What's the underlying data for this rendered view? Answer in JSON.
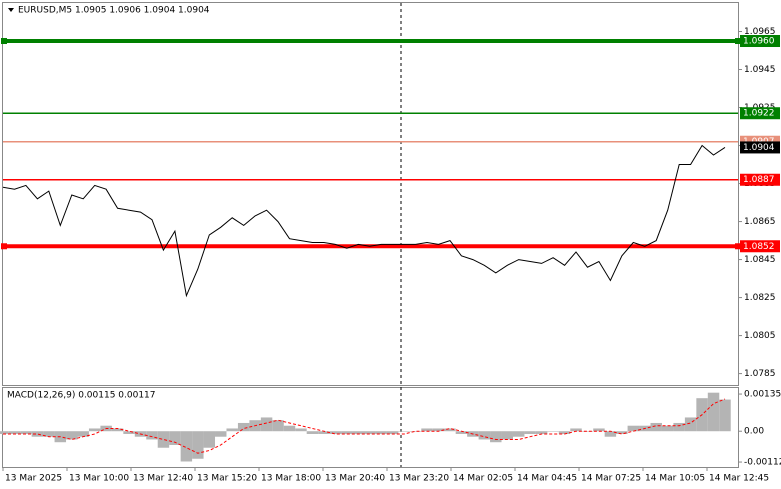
{
  "chart_data": [
    {
      "type": "line",
      "title": "EURUSD,M5  1.0905 1.0906 1.0904 1.0904",
      "series": [
        {
          "color": "#000000",
          "values": [
            1.0883,
            1.0882,
            1.0884,
            1.0877,
            1.0881,
            1.0863,
            1.0879,
            1.0877,
            1.0884,
            1.0882,
            1.0872,
            1.0871,
            1.087,
            1.0866,
            1.085,
            1.086,
            1.0826,
            1.084,
            1.0858,
            1.0862,
            1.0867,
            1.0863,
            1.0868,
            1.0871,
            1.0865,
            1.0856,
            1.0855,
            1.0854,
            1.0854,
            1.0853,
            1.0851,
            1.0853,
            1.0852,
            1.0853,
            1.0853,
            1.0853,
            1.0853,
            1.0854,
            1.0853,
            1.0855,
            1.0847,
            1.0845,
            1.0842,
            1.0838,
            1.0842,
            1.0845,
            1.0844,
            1.0843,
            1.0846,
            1.0842,
            1.0849,
            1.0841,
            1.0844,
            1.0834,
            1.0847,
            1.0854,
            1.0852,
            1.0855,
            1.0871,
            1.0895,
            1.0895,
            1.0905,
            1.09,
            1.0904
          ]
        }
      ],
      "ylim": [
        1.0779,
        1.098
      ],
      "yticks": [
        1.0965,
        1.0945,
        1.0925,
        1.0905,
        1.0885,
        1.0865,
        1.0845,
        1.0825,
        1.0805,
        1.0785
      ],
      "levels": [
        {
          "value": 1.096,
          "label": "1.0960",
          "color": "#008000",
          "thick": true
        },
        {
          "value": 1.0922,
          "color": "#008000",
          "thick": false
        },
        {
          "value": 1.0907,
          "color": "#e8907a",
          "thick": false
        },
        {
          "value": 1.0887,
          "color": "#ff0000",
          "thick": false
        },
        {
          "value": 1.0852,
          "color": "#ff0000",
          "thick": true
        }
      ],
      "last_price": 1.0904
    },
    {
      "type": "macd",
      "title": "MACD(12,26,9) 0.00115 0.00117",
      "series": [
        {
          "color": "#b4b4b4",
          "values": [
            -0.0001,
            -0.0001,
            -0.0001,
            -0.0002,
            -0.0002,
            -0.0004,
            -0.0003,
            -0.0002,
            0.0001,
            0.0002,
            0.0001,
            -0.0001,
            -0.0002,
            -0.0003,
            -0.0006,
            -0.0005,
            -0.0011,
            -0.001,
            -0.0006,
            -0.0002,
            0.0001,
            0.0003,
            0.0004,
            0.0005,
            0.0004,
            0.0002,
            0.0001,
            -0.0001,
            -0.0001,
            -0.0001,
            -0.0001,
            -0.0001,
            -0.0001,
            -0.0001,
            -0.0001,
            0,
            0,
            0.0001,
            0.0001,
            0.0001,
            -0.0001,
            -0.0002,
            -0.0003,
            -0.0004,
            -0.0003,
            -0.0002,
            -0.0001,
            -0.0001,
            0,
            -0.0001,
            0.0001,
            0,
            0.0001,
            -0.0002,
            -0.0001,
            0.0002,
            0.0002,
            0.0003,
            0.0002,
            0.0003,
            0.0005,
            0.0012,
            0.0014,
            0.00115
          ]
        },
        {
          "color": "#ff0000",
          "values": [
            -0.0001,
            -0.0001,
            -0.0001,
            -0.0001,
            -0.0002,
            -0.0002,
            -0.0003,
            -0.0002,
            -0.0001,
            0.0001,
            0.0001,
            0,
            -0.0001,
            -0.0002,
            -0.0003,
            -0.0004,
            -0.0006,
            -0.0008,
            -0.0007,
            -0.0005,
            -0.0002,
            0.0001,
            0.0002,
            0.0003,
            0.0004,
            0.0003,
            0.0002,
            0.0001,
            0,
            -0.0001,
            -0.0001,
            -0.0001,
            -0.0001,
            -0.0001,
            -0.0001,
            -0.0001,
            0,
            0,
            0,
            0.0001,
            0,
            -0.0001,
            -0.0002,
            -0.0003,
            -0.0003,
            -0.0003,
            -0.0002,
            -0.0001,
            -0.0001,
            -0.0001,
            0,
            0,
            0,
            0,
            -0.0001,
            0,
            0.0001,
            0.0002,
            0.0002,
            0.0002,
            0.0003,
            0.0006,
            0.001,
            0.00117
          ]
        }
      ],
      "ylim": [
        -0.0013,
        0.00157
      ],
      "yticks": [
        0.00135,
        {
          "value": 0,
          "label": "0.00"
        },
        -0.00112
      ],
      "x_labels": [
        "13 Mar 2025",
        "13 Mar 10:00",
        "13 Mar 12:40",
        "13 Mar 15:20",
        "13 Mar 18:00",
        "13 Mar 20:40",
        "13 Mar 23:20",
        "14 Mar 02:05",
        "14 Mar 04:45",
        "14 Mar 07:25",
        "14 Mar 10:05",
        "14 Mar 12:45"
      ]
    }
  ]
}
